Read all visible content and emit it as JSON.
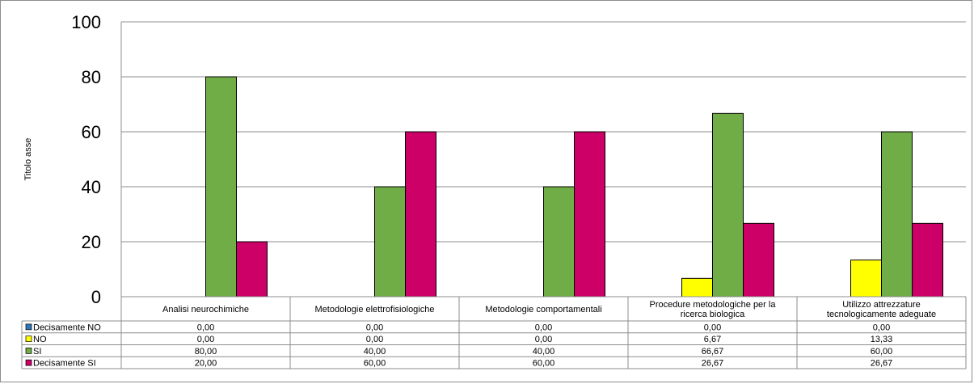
{
  "chart_data": {
    "type": "bar",
    "ylabel": "Titolo asse",
    "ylim": [
      0,
      100
    ],
    "yticks": [
      0,
      20,
      40,
      60,
      80,
      100
    ],
    "grid": true,
    "legend": "data-table-left",
    "categories": [
      [
        "Analisi neurochimiche"
      ],
      [
        "Metodologie elettrofisiologiche"
      ],
      [
        "Metodologie comportamentali"
      ],
      [
        "Procedure metodologiche per la",
        "ricerca biologica"
      ],
      [
        "Utilizzo attrezzature",
        "tecnologicamente adeguate"
      ]
    ],
    "series": [
      {
        "name": "Decisamente NO",
        "color": "#2e75b6",
        "values": [
          0,
          0,
          0,
          0,
          0
        ],
        "labels": [
          "0,00",
          "0,00",
          "0,00",
          "0,00",
          "0,00"
        ]
      },
      {
        "name": "NO",
        "color": "#ffff00",
        "values": [
          0,
          0,
          0,
          6.67,
          13.33
        ],
        "labels": [
          "0,00",
          "0,00",
          "0,00",
          "6,67",
          "13,33"
        ]
      },
      {
        "name": "SI",
        "color": "#70ad47",
        "values": [
          80,
          40,
          40,
          66.67,
          60
        ],
        "labels": [
          "80,00",
          "40,00",
          "40,00",
          "66,67",
          "60,00"
        ]
      },
      {
        "name": "Decisamente SI",
        "color": "#cc0066",
        "values": [
          20,
          60,
          60,
          26.67,
          26.67
        ],
        "labels": [
          "20,00",
          "60,00",
          "60,00",
          "26,67",
          "26,67"
        ]
      }
    ]
  }
}
